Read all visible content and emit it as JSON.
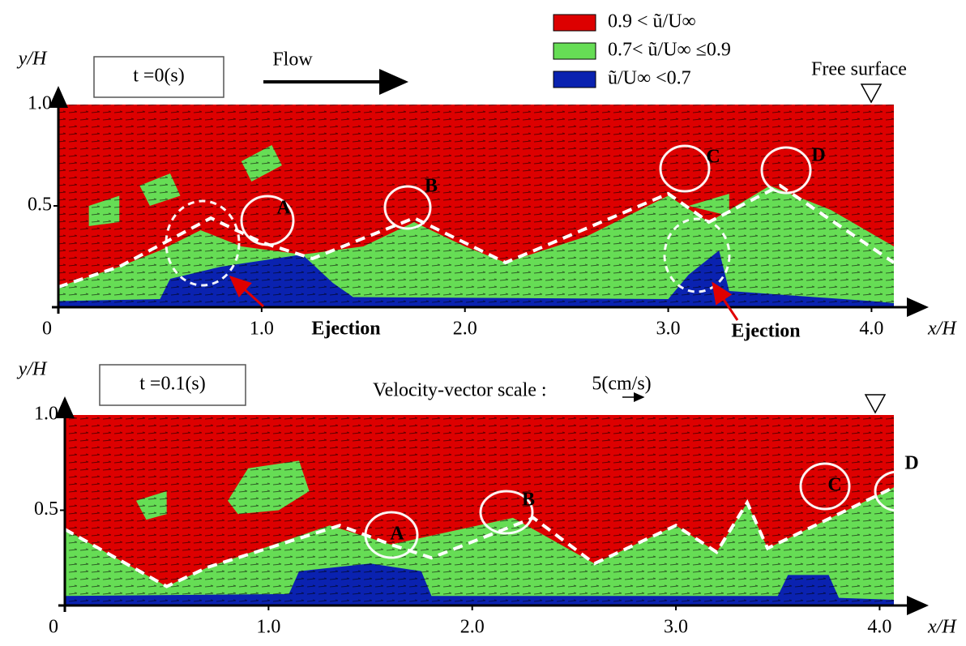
{
  "chart_data": [
    {
      "type": "field",
      "label": "t =0(s)",
      "xlabel": "x/H",
      "ylabel": "y/H",
      "xlim": [
        0,
        4.11
      ],
      "ylim": [
        0,
        1
      ],
      "xticks": [
        0,
        {
          "value": 1,
          "label": "1.0"
        },
        {
          "value": 2,
          "label": "2.0"
        },
        {
          "value": 3,
          "label": "3.0"
        },
        {
          "value": 4,
          "label": "4.0"
        }
      ],
      "yticks": [
        0.5,
        {
          "value": 1,
          "label": "1.0"
        }
      ],
      "legend": [
        {
          "label": "0.9 < ũ/U∞",
          "color": "#dd0000"
        },
        {
          "label": "0.7< ũ/U∞ ≤0.9",
          "color": "#66dd55"
        },
        {
          "label": "ũ/U∞ <0.7",
          "color": "#0a22b0"
        }
      ],
      "annotations": [
        "A",
        "B",
        "C",
        "D",
        "Ejection",
        "Ejection",
        "Flow",
        "Free surface"
      ]
    },
    {
      "type": "field",
      "label": "t =0.1(s)",
      "xlabel": "x/H",
      "ylabel": "y/H",
      "xlim": [
        0,
        4.07
      ],
      "ylim": [
        0,
        1
      ],
      "xticks": [
        0,
        {
          "value": 1,
          "label": "1.0"
        },
        {
          "value": 2,
          "label": "2.0"
        },
        {
          "value": 3,
          "label": "3.0"
        },
        {
          "value": 4,
          "label": "4.0"
        }
      ],
      "yticks": [
        0.5,
        {
          "value": 1,
          "label": "1.0"
        }
      ],
      "annotations": [
        "A",
        "B",
        "C",
        "D",
        "Velocity-vector scale :",
        "5(cm/s)"
      ]
    }
  ]
}
